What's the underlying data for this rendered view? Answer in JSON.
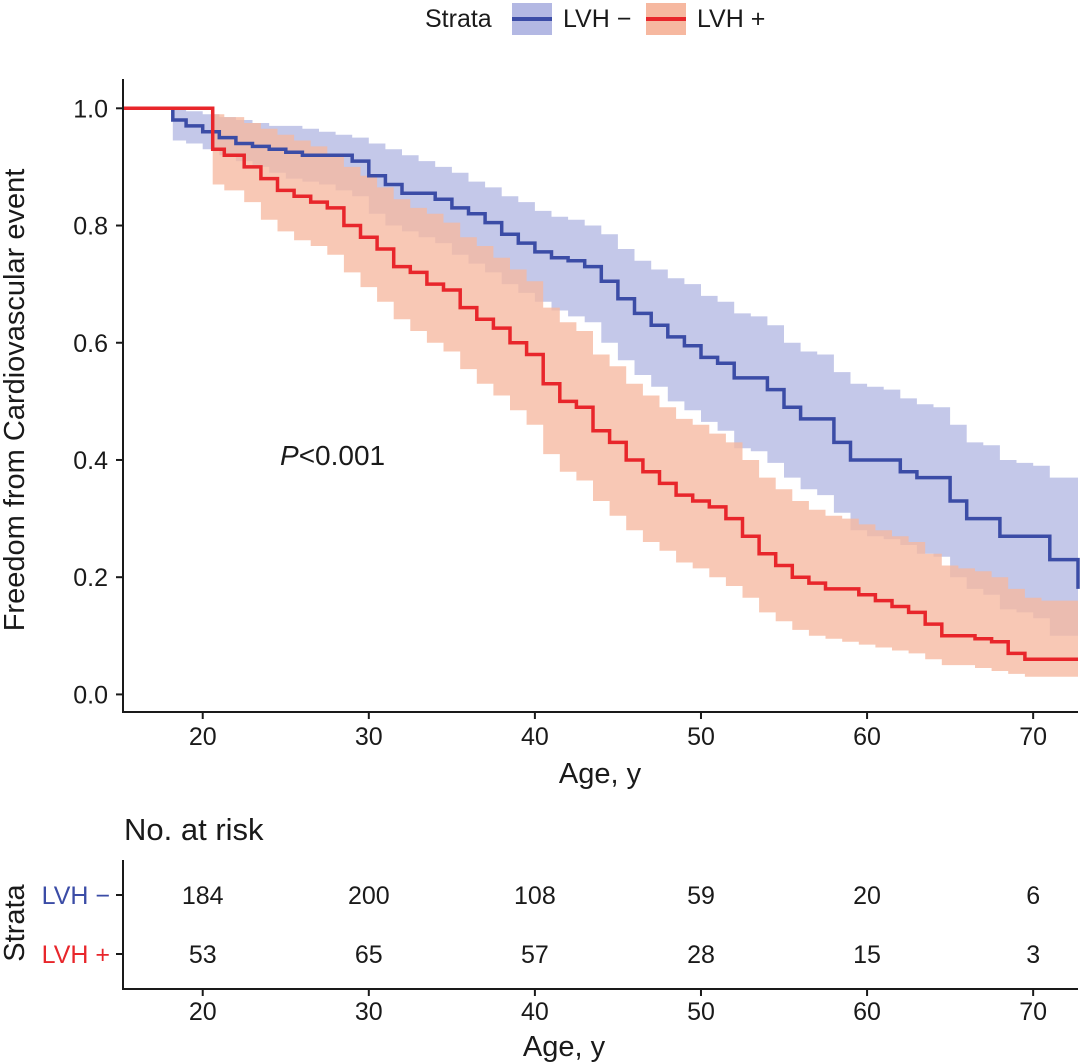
{
  "legend": {
    "title": "Strata",
    "entries": [
      "LVH −",
      "LVH +"
    ]
  },
  "annotation": {
    "p_italic": "P",
    "p_rest": "<0.001"
  },
  "colors": {
    "lvh_minus": "#3b4ca6",
    "lvh_minus_band": "#b3b8e3",
    "lvh_plus": "#e8262b",
    "lvh_plus_band": "#f6b8a0"
  },
  "chart_data": {
    "type": "line",
    "title": "",
    "xlabel": "Age, y",
    "ylabel": "Freedom from Cardiovascular event",
    "xlim": [
      15.2,
      72.7
    ],
    "ylim": [
      -0.03,
      1.05
    ],
    "x_ticks": [
      20,
      30,
      40,
      50,
      60,
      70
    ],
    "y_ticks": [
      0.0,
      0.2,
      0.4,
      0.6,
      0.8,
      1.0
    ],
    "y_tick_labels": [
      "0.0",
      "0.2",
      "0.4",
      "0.6",
      "0.8",
      "1.0"
    ],
    "series": [
      {
        "name": "LVH −",
        "x": [
          15.2,
          18.2,
          19,
          20,
          21,
          22,
          23,
          24,
          25,
          26,
          27,
          28,
          29,
          30,
          31,
          32,
          33,
          34,
          35,
          36,
          37,
          38,
          39,
          40,
          41,
          42,
          43,
          44,
          45,
          46,
          47,
          48,
          49,
          50,
          51,
          52,
          53,
          54,
          55,
          56,
          57,
          58,
          59,
          60,
          61,
          62,
          63,
          64,
          65,
          66,
          67,
          68,
          69,
          70,
          71,
          72.7
        ],
        "y": [
          1.0,
          0.98,
          0.97,
          0.96,
          0.95,
          0.94,
          0.935,
          0.93,
          0.925,
          0.92,
          0.92,
          0.92,
          0.91,
          0.885,
          0.87,
          0.855,
          0.855,
          0.845,
          0.83,
          0.82,
          0.805,
          0.785,
          0.77,
          0.755,
          0.745,
          0.74,
          0.73,
          0.705,
          0.675,
          0.65,
          0.63,
          0.61,
          0.595,
          0.575,
          0.565,
          0.54,
          0.54,
          0.52,
          0.49,
          0.47,
          0.47,
          0.43,
          0.4,
          0.4,
          0.4,
          0.38,
          0.37,
          0.37,
          0.33,
          0.3,
          0.3,
          0.27,
          0.27,
          0.27,
          0.23,
          0.18
        ],
        "lower": [
          1.0,
          0.945,
          0.94,
          0.93,
          0.92,
          0.91,
          0.9,
          0.89,
          0.88,
          0.875,
          0.87,
          0.86,
          0.85,
          0.82,
          0.8,
          0.79,
          0.78,
          0.77,
          0.75,
          0.735,
          0.72,
          0.7,
          0.685,
          0.67,
          0.655,
          0.645,
          0.635,
          0.6,
          0.57,
          0.545,
          0.525,
          0.5,
          0.485,
          0.465,
          0.45,
          0.42,
          0.415,
          0.395,
          0.37,
          0.35,
          0.34,
          0.31,
          0.28,
          0.27,
          0.265,
          0.255,
          0.24,
          0.235,
          0.2,
          0.18,
          0.17,
          0.145,
          0.14,
          0.13,
          0.1,
          0.09
        ],
        "upper": [
          1.0,
          1.0,
          0.995,
          0.99,
          0.985,
          0.98,
          0.975,
          0.97,
          0.97,
          0.965,
          0.96,
          0.955,
          0.95,
          0.94,
          0.93,
          0.92,
          0.91,
          0.9,
          0.89,
          0.875,
          0.865,
          0.85,
          0.84,
          0.825,
          0.815,
          0.81,
          0.8,
          0.785,
          0.76,
          0.74,
          0.725,
          0.71,
          0.7,
          0.68,
          0.67,
          0.65,
          0.645,
          0.63,
          0.6,
          0.585,
          0.58,
          0.55,
          0.53,
          0.525,
          0.52,
          0.505,
          0.495,
          0.49,
          0.46,
          0.43,
          0.425,
          0.4,
          0.395,
          0.39,
          0.37,
          0.36
        ]
      },
      {
        "name": "LVH +",
        "x": [
          15.2,
          20.6,
          21.3,
          22.5,
          23.5,
          24.5,
          25.5,
          26.5,
          27.5,
          28.5,
          29.5,
          30.5,
          31.5,
          32.5,
          33.5,
          34.5,
          35.5,
          36.5,
          37.5,
          38.5,
          39.5,
          40.5,
          41.5,
          42.5,
          43.5,
          44.5,
          45.5,
          46.5,
          47.5,
          48.5,
          49.5,
          50.5,
          51.5,
          52.5,
          53.5,
          54.5,
          55.5,
          56.5,
          57.5,
          58.5,
          59.5,
          60.5,
          61.5,
          62.5,
          63.5,
          64.5,
          65.5,
          66.5,
          67.5,
          68.5,
          69.5,
          70.5,
          72.7
        ],
        "y": [
          1.0,
          0.93,
          0.92,
          0.9,
          0.88,
          0.86,
          0.85,
          0.84,
          0.83,
          0.8,
          0.78,
          0.76,
          0.73,
          0.72,
          0.7,
          0.69,
          0.66,
          0.64,
          0.625,
          0.6,
          0.58,
          0.53,
          0.5,
          0.49,
          0.45,
          0.43,
          0.4,
          0.38,
          0.36,
          0.34,
          0.33,
          0.32,
          0.3,
          0.27,
          0.24,
          0.22,
          0.2,
          0.19,
          0.18,
          0.18,
          0.17,
          0.16,
          0.15,
          0.14,
          0.12,
          0.1,
          0.1,
          0.095,
          0.09,
          0.07,
          0.06,
          0.06,
          0.06
        ],
        "lower": [
          1.0,
          0.87,
          0.86,
          0.84,
          0.81,
          0.79,
          0.775,
          0.765,
          0.75,
          0.72,
          0.695,
          0.67,
          0.64,
          0.62,
          0.6,
          0.585,
          0.555,
          0.53,
          0.51,
          0.485,
          0.46,
          0.41,
          0.38,
          0.365,
          0.33,
          0.305,
          0.28,
          0.26,
          0.245,
          0.225,
          0.215,
          0.2,
          0.185,
          0.165,
          0.14,
          0.125,
          0.11,
          0.1,
          0.095,
          0.09,
          0.085,
          0.08,
          0.075,
          0.07,
          0.06,
          0.05,
          0.05,
          0.045,
          0.04,
          0.035,
          0.03,
          0.03,
          0.03
        ],
        "upper": [
          1.0,
          0.99,
          0.985,
          0.975,
          0.965,
          0.955,
          0.945,
          0.935,
          0.92,
          0.9,
          0.885,
          0.865,
          0.845,
          0.83,
          0.82,
          0.805,
          0.78,
          0.765,
          0.745,
          0.725,
          0.705,
          0.66,
          0.635,
          0.62,
          0.58,
          0.56,
          0.53,
          0.51,
          0.49,
          0.47,
          0.46,
          0.445,
          0.43,
          0.4,
          0.37,
          0.35,
          0.33,
          0.315,
          0.305,
          0.3,
          0.29,
          0.28,
          0.27,
          0.26,
          0.24,
          0.22,
          0.215,
          0.21,
          0.2,
          0.18,
          0.165,
          0.16,
          0.155
        ]
      }
    ]
  },
  "risk_table": {
    "title": "No. at risk",
    "ylabel": "Strata",
    "xlabel": "Age, y",
    "x_ticks": [
      20,
      30,
      40,
      50,
      60,
      70
    ],
    "rows": [
      {
        "label": "LVH −",
        "values": [
          184,
          200,
          108,
          59,
          20,
          6
        ]
      },
      {
        "label": "LVH +",
        "values": [
          53,
          65,
          57,
          28,
          15,
          3
        ]
      }
    ]
  }
}
